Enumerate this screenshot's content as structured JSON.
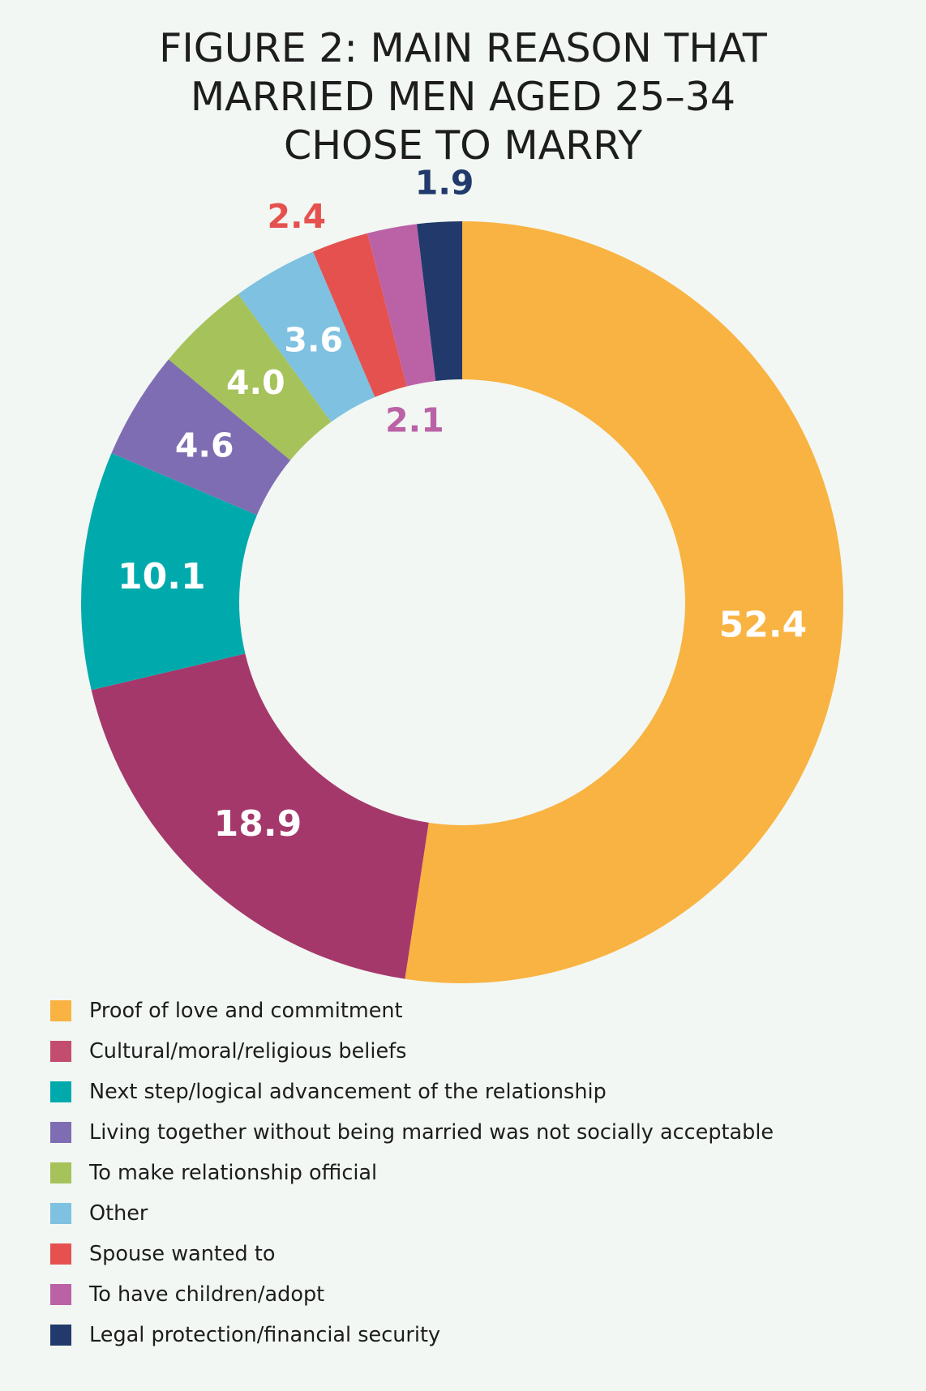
{
  "chart_data": {
    "type": "pie",
    "donut": true,
    "title_lines": [
      "FIGURE 2: MAIN REASON THAT",
      "MARRIED MEN AGED 25–34",
      "CHOSE TO MARRY"
    ],
    "slices": [
      {
        "name": "Proof of love and commitment",
        "value": 52.4,
        "label": "52.4",
        "color": "#f9b342",
        "label_color": "#ffffff"
      },
      {
        "name": "Cultural/moral/religious beliefs",
        "value": 18.9,
        "label": "18.9",
        "color": "#a5386b",
        "label_color": "#ffffff"
      },
      {
        "name": "Next step/logical advancement of the relationship",
        "value": 10.1,
        "label": "10.1",
        "color": "#00aaac",
        "label_color": "#ffffff"
      },
      {
        "name": "Living together without being married was not socially acceptable",
        "value": 4.6,
        "label": "4.6",
        "color": "#7f6db3",
        "label_color": "#ffffff"
      },
      {
        "name": "To make relationship official",
        "value": 4.0,
        "label": "4.0",
        "color": "#a6c25b",
        "label_color": "#ffffff"
      },
      {
        "name": "Other",
        "value": 3.6,
        "label": "3.6",
        "color": "#7ec1e0",
        "label_color": "#ffffff"
      },
      {
        "name": "Spouse wanted to",
        "value": 2.4,
        "label": "2.4",
        "color": "#e5514f",
        "label_color": "#e5514f"
      },
      {
        "name": "To have children/adopt",
        "value": 2.1,
        "label": "2.1",
        "color": "#bb62a7",
        "label_color": "#bb62a7"
      },
      {
        "name": "Legal protection/financial security",
        "value": 1.9,
        "label": "1.9",
        "color": "#213a6b",
        "label_color": "#213a6b"
      }
    ],
    "legend_colors": [
      "#f9b342",
      "#c24d6e",
      "#00aaac",
      "#7f6db3",
      "#a6c25b",
      "#7ec1e0",
      "#e5514f",
      "#bb62a7",
      "#213a6b"
    ],
    "legend_position": "bottom-left"
  }
}
